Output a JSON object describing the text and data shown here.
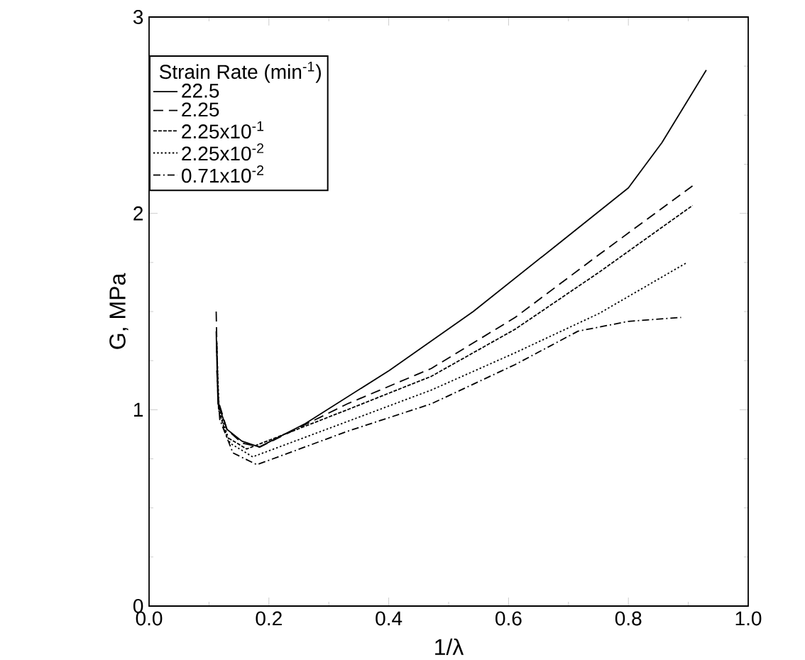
{
  "chart_data": {
    "type": "line",
    "xlabel": "1/λ",
    "ylabel": "G, MPa",
    "legend_title": "Strain Rate (min$^{-1}$)",
    "legend": "top left",
    "xlim": [
      0,
      1
    ],
    "ylim": [
      0,
      3
    ],
    "xticks": [
      {
        "value": 0,
        "label": "0.0"
      },
      {
        "value": 0.2,
        "label": "0.2"
      },
      {
        "value": 0.4,
        "label": "0.4"
      },
      {
        "value": 0.6,
        "label": "0.6"
      },
      {
        "value": 0.8,
        "label": "0.8"
      },
      {
        "value": 1,
        "label": "1.0"
      }
    ],
    "yticks": [
      0,
      1,
      2,
      3
    ],
    "series": [
      {
        "name": "22.5",
        "color": "#000000",
        "line_style": "solid",
        "x": [
          0.112,
          0.115,
          0.13,
          0.155,
          0.184,
          0.261,
          0.401,
          0.541,
          0.681,
          0.8,
          0.856,
          0.93
        ],
        "values": [
          1.4,
          1.03,
          0.9,
          0.84,
          0.81,
          0.93,
          1.2,
          1.5,
          1.84,
          2.13,
          2.36,
          2.73
        ]
      },
      {
        "name": "2.25",
        "color": "#000000",
        "line_style": "dashed",
        "x": [
          0.112,
          0.115,
          0.13,
          0.155,
          0.185,
          0.331,
          0.471,
          0.611,
          0.751,
          0.907
        ],
        "values": [
          1.5,
          1.05,
          0.9,
          0.83,
          0.81,
          1.03,
          1.21,
          1.47,
          1.79,
          2.14
        ]
      },
      {
        "name": "2.25x10$^{-1}$",
        "color": "#000000",
        "line_style": "densely dashed",
        "x": [
          0.113,
          0.116,
          0.13,
          0.163,
          0.331,
          0.471,
          0.611,
          0.751,
          0.907
        ],
        "values": [
          1.35,
          1.0,
          0.86,
          0.8,
          1.0,
          1.17,
          1.41,
          1.7,
          2.04
        ]
      },
      {
        "name": "2.25x10$^{-2}$",
        "color": "#000000",
        "line_style": "dotted",
        "x": [
          0.113,
          0.117,
          0.135,
          0.173,
          0.331,
          0.471,
          0.611,
          0.751,
          0.898
        ],
        "values": [
          1.3,
          1.0,
          0.83,
          0.76,
          0.94,
          1.1,
          1.29,
          1.49,
          1.75
        ]
      },
      {
        "name": "0.71x10$^{-2}$",
        "color": "#000000",
        "line_style": "dashdot",
        "x": [
          0.113,
          0.118,
          0.14,
          0.18,
          0.331,
          0.471,
          0.611,
          0.716,
          0.8,
          0.888
        ],
        "values": [
          1.2,
          0.95,
          0.78,
          0.72,
          0.89,
          1.03,
          1.23,
          1.4,
          1.45,
          1.47
        ]
      }
    ]
  }
}
